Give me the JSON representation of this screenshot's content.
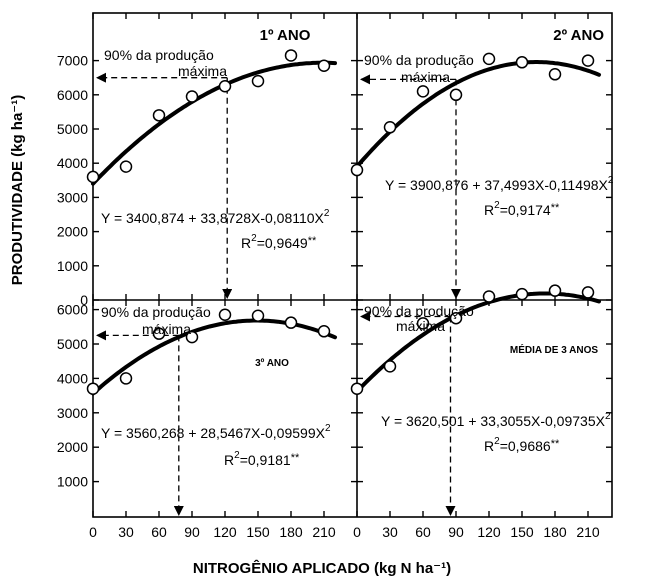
{
  "chart_data": {
    "type": "scatter",
    "xlabel": "NITROGÊNIO APLICADO (kg N ha⁻¹)",
    "ylabel": "PRODUTIVIDADE (kg ha⁻¹)",
    "x_ticks": [
      "0",
      "30",
      "60",
      "90",
      "120",
      "150",
      "180",
      "210"
    ],
    "y_ticks_top": [
      "0",
      "1000",
      "2000",
      "3000",
      "4000",
      "5000",
      "6000",
      "7000"
    ],
    "y_ticks_bottom": [
      "1000",
      "2000",
      "3000",
      "4000",
      "5000",
      "6000"
    ],
    "xlim": [
      0,
      240
    ],
    "panels": [
      {
        "title": "1º ANO",
        "ylim": [
          0,
          8000
        ],
        "points": {
          "x": [
            0,
            30,
            60,
            90,
            120,
            150,
            180,
            210
          ],
          "y": [
            3600,
            3900,
            5400,
            5950,
            6250,
            6400,
            7150,
            6850
          ]
        },
        "fit": {
          "a": 3400.874,
          "b": 33.8728,
          "c": -0.0811
        },
        "equation": "Y = 3400,874 + 33,8728X-0,08110X",
        "equation_exp": "2",
        "r2_label": "R",
        "r2_exp": "2",
        "r2_value": "=0,9649",
        "r2_sig": "**",
        "annotation_line1": "90% da produção",
        "annotation_line2": "máxima",
        "target_x": 122,
        "target_y": 6500
      },
      {
        "title": "2º ANO",
        "ylim": [
          0,
          8000
        ],
        "points": {
          "x": [
            0,
            30,
            60,
            90,
            120,
            150,
            180,
            210
          ],
          "y": [
            3800,
            5050,
            6100,
            6000,
            7050,
            6950,
            6600,
            7000
          ]
        },
        "fit": {
          "a": 3900.876,
          "b": 37.4993,
          "c": -0.11498
        },
        "equation": "Y = 3900,876 + 37,4993X-0,11498X",
        "equation_exp": "2",
        "r2_label": "R",
        "r2_exp": "2",
        "r2_value": "=0,9174",
        "r2_sig": "**",
        "annotation_line1": "90% da produção",
        "annotation_line2": "máxima",
        "target_x": 90,
        "target_y": 6450
      },
      {
        "title": "3º ANO",
        "ylim": [
          0,
          6500
        ],
        "points": {
          "x": [
            0,
            30,
            60,
            90,
            120,
            150,
            180,
            210
          ],
          "y": [
            3700,
            4000,
            5300,
            5200,
            5850,
            5820,
            5620,
            5370
          ]
        },
        "fit": {
          "a": 3560.268,
          "b": 28.5467,
          "c": -0.09599
        },
        "equation": "Y = 3560,268 + 28,5467X-0,09599X",
        "equation_exp": "2",
        "r2_label": "R",
        "r2_exp": "2",
        "r2_value": "=0,9181",
        "r2_sig": "**",
        "annotation_line1": "90% da produção",
        "annotation_line2": "máxima",
        "target_x": 78,
        "target_y": 5250
      },
      {
        "title": "MÉDIA DE 3 ANOS",
        "ylim": [
          0,
          6500
        ],
        "points": {
          "x": [
            0,
            30,
            60,
            90,
            120,
            150,
            180,
            210
          ],
          "y": [
            3700,
            4350,
            5600,
            5750,
            6380,
            6450,
            6550,
            6500
          ]
        },
        "fit": {
          "a": 3620.501,
          "b": 33.3055,
          "c": -0.09735
        },
        "equation": "Y = 3620,501 + 33,3055X-0,09735X",
        "equation_exp": "2",
        "r2_label": "R",
        "r2_exp": "2",
        "r2_value": "=0,9686",
        "r2_sig": "**",
        "annotation_line1": "90% da produção",
        "annotation_line2": "máxima",
        "target_x": 85,
        "target_y": 5800
      }
    ]
  }
}
